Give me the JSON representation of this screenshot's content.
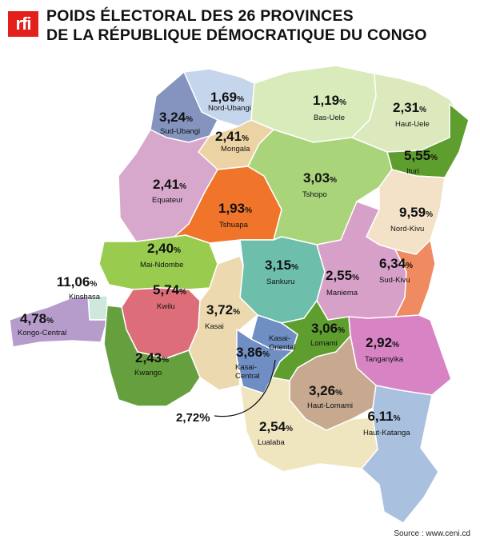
{
  "header": {
    "logo": "rfi",
    "title_line1": "POIDS ÉLECTORAL DES 26 PROVINCES",
    "title_line2": "DE LA RÉPUBLIQUE DÉMOCRATIQUE DU CONGO"
  },
  "source": "Source : www.ceni.cd",
  "provinces": [
    {
      "name": "Nord-Ubangi",
      "value": "1,69",
      "color": "#c5d6ec"
    },
    {
      "name": "Sud-Ubangi",
      "value": "3,24",
      "color": "#8494bf"
    },
    {
      "name": "Mongala",
      "value": "2,41",
      "color": "#ecd3a4"
    },
    {
      "name": "Bas-Uele",
      "value": "1,19",
      "color": "#d9ebbb"
    },
    {
      "name": "Haut-Uele",
      "value": "2,31",
      "color": "#dbe9bd"
    },
    {
      "name": "Ituri",
      "value": "5,55",
      "color": "#5e9e2e"
    },
    {
      "name": "Equateur",
      "value": "2,41",
      "color": "#d8a8cc"
    },
    {
      "name": "Tshuapa",
      "value": "1,93",
      "color": "#f0742a"
    },
    {
      "name": "Tshopo",
      "value": "3,03",
      "color": "#a9d47a"
    },
    {
      "name": "Nord-Kivu",
      "value": "9,59",
      "color": "#f3e1c8"
    },
    {
      "name": "Mai-Ndombe",
      "value": "2,40",
      "color": "#99cc4e"
    },
    {
      "name": "Sankuru",
      "value": "3,15",
      "color": "#6dbfac"
    },
    {
      "name": "Maniema",
      "value": "2,55",
      "color": "#d7a0c8"
    },
    {
      "name": "Sud-Kivu",
      "value": "6,34",
      "color": "#f08a60"
    },
    {
      "name": "Kinshasa",
      "value": "11,06",
      "color": "#cfe8dc"
    },
    {
      "name": "Kongo-Central",
      "value": "4,78",
      "color": "#b69ccb"
    },
    {
      "name": "Kwilu",
      "value": "5,74",
      "color": "#dd6d78"
    },
    {
      "name": "Kasai",
      "value": "3,72",
      "color": "#ecd9b0"
    },
    {
      "name": "Kasai-Oriental",
      "value": "",
      "color": "#6f8fc4"
    },
    {
      "name": "Lomami",
      "value": "3,06",
      "color": "#5e9e2e"
    },
    {
      "name": "Tanganyika",
      "value": "2,92",
      "color": "#d884c4"
    },
    {
      "name": "Kwango",
      "value": "2,43",
      "color": "#66a03e"
    },
    {
      "name": "Kasai-Central",
      "value": "3,86",
      "color": "#6f8fc4"
    },
    {
      "name": "Haut-Lomami",
      "value": "3,26",
      "color": "#c6a98e"
    },
    {
      "name": "Lualaba",
      "value": "2,54",
      "color": "#efe6c0"
    },
    {
      "name": "Haut-Katanga",
      "value": "6,11",
      "color": "#a9c0de"
    }
  ],
  "callout": {
    "value": "2,72%"
  }
}
